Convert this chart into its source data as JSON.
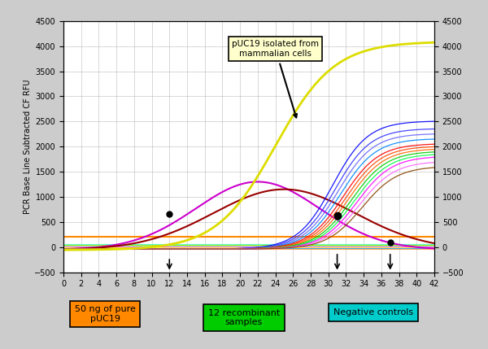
{
  "ylim": [
    -500,
    4500
  ],
  "xlim": [
    0,
    42
  ],
  "xticks": [
    0,
    2,
    4,
    6,
    8,
    10,
    12,
    14,
    16,
    18,
    20,
    22,
    24,
    26,
    28,
    30,
    32,
    34,
    36,
    38,
    40,
    42
  ],
  "yticks": [
    -500,
    0,
    500,
    1000,
    1500,
    2000,
    2500,
    3000,
    3500,
    4000,
    4500
  ],
  "ylabel": "PCR Base Line Subtracted CF RFU",
  "annotation_box_text": "pUC19 isolated from\nmammalian cells",
  "label1_text": "50 ng of pure\npUC19",
  "label2_text": "12 recombinant\nsamples",
  "label3_text": "Negative controls",
  "bg_color": "#cccccc",
  "plot_bg": "#ffffff",
  "orange_flat": 200,
  "recombinant_colors": [
    "#0000FF",
    "#3333FF",
    "#6666FF",
    "#0088FF",
    "#FF0000",
    "#FF4400",
    "#FF6600",
    "#00CC00",
    "#00FF44",
    "#FF00FF",
    "#FF66FF",
    "#884400"
  ],
  "recombinant_midpoints": [
    30.5,
    30.8,
    31.1,
    31.4,
    31.7,
    32.0,
    32.3,
    32.6,
    32.9,
    33.2,
    33.5,
    33.8
  ],
  "recombinant_end_vals": [
    2550,
    2400,
    2300,
    2200,
    2100,
    2050,
    2000,
    1950,
    1900,
    1850,
    1750,
    1650
  ],
  "neg_control_colors": [
    "#FF0066",
    "#00FFFF",
    "#FFAA00",
    "#AAFFAA",
    "#FF44FF",
    "#0099FF",
    "#99FF00",
    "#FF9944",
    "#44FFCC",
    "#FFFF44"
  ],
  "neg_control_levels": [
    50,
    30,
    -10,
    20,
    10,
    -20,
    40,
    -30,
    60,
    0
  ]
}
